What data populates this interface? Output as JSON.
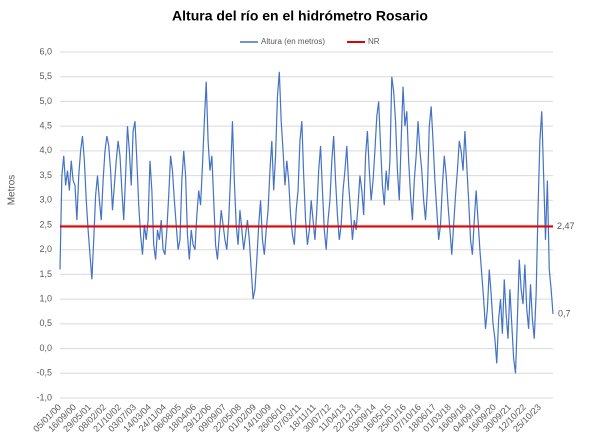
{
  "chart_data": {
    "type": "line",
    "title": "Altura del río en el hidrómetro Rosario",
    "y_label": "Metros",
    "ylim": [
      -1,
      6
    ],
    "yticks": [
      {
        "value": -1,
        "label": "-1,0"
      },
      {
        "value": -0.5,
        "label": "-0,5"
      },
      {
        "value": 0,
        "label": "0,0"
      },
      {
        "value": 0.5,
        "label": "0,5"
      },
      {
        "value": 1,
        "label": "1,0"
      },
      {
        "value": 1.5,
        "label": "1,5"
      },
      {
        "value": 2,
        "label": "2,0"
      },
      {
        "value": 2.5,
        "label": "2,5"
      },
      {
        "value": 3,
        "label": "3,0"
      },
      {
        "value": 3.5,
        "label": "3,5"
      },
      {
        "value": 4,
        "label": "4,0"
      },
      {
        "value": 4.5,
        "label": "4,5"
      },
      {
        "value": 5,
        "label": "5,0"
      },
      {
        "value": 5.5,
        "label": "5,5"
      },
      {
        "value": 6,
        "label": "6,0"
      }
    ],
    "grid": true,
    "categories": [
      "05/01/00",
      null,
      null,
      null,
      null,
      null,
      null,
      null,
      "16/09/00",
      null,
      null,
      null,
      null,
      null,
      null,
      null,
      "29/05/01",
      null,
      null,
      null,
      null,
      null,
      null,
      null,
      "08/02/02",
      null,
      null,
      null,
      null,
      null,
      null,
      null,
      "21/10/02",
      null,
      null,
      null,
      null,
      null,
      null,
      null,
      "03/07/03",
      null,
      null,
      null,
      null,
      null,
      null,
      null,
      "14/03/04",
      null,
      null,
      null,
      null,
      null,
      null,
      null,
      "24/11/04",
      null,
      null,
      null,
      null,
      null,
      null,
      null,
      "06/08/05",
      null,
      null,
      null,
      null,
      null,
      null,
      null,
      "18/04/06",
      null,
      null,
      null,
      null,
      null,
      null,
      null,
      "29/12/06",
      null,
      null,
      null,
      null,
      null,
      null,
      null,
      "09/09/07",
      null,
      null,
      null,
      null,
      null,
      null,
      null,
      "22/05/08",
      null,
      null,
      null,
      null,
      null,
      null,
      null,
      "01/02/09",
      null,
      null,
      null,
      null,
      null,
      null,
      null,
      "14/10/09",
      null,
      null,
      null,
      null,
      null,
      null,
      null,
      "26/06/10",
      null,
      null,
      null,
      null,
      null,
      null,
      null,
      "07/03/11",
      null,
      null,
      null,
      null,
      null,
      null,
      null,
      "18/11/11",
      null,
      null,
      null,
      null,
      null,
      null,
      null,
      "30/07/12",
      null,
      null,
      null,
      null,
      null,
      null,
      null,
      "11/04/13",
      null,
      null,
      null,
      null,
      null,
      null,
      null,
      "22/12/13",
      null,
      null,
      null,
      null,
      null,
      null,
      null,
      "03/09/14",
      null,
      null,
      null,
      null,
      null,
      null,
      null,
      "16/05/15",
      null,
      null,
      null,
      null,
      null,
      null,
      null,
      "25/01/16",
      null,
      null,
      null,
      null,
      null,
      null,
      null,
      "07/10/16",
      null,
      null,
      null,
      null,
      null,
      null,
      null,
      "18/06/17",
      null,
      null,
      null,
      null,
      null,
      null,
      null,
      "01/03/18",
      null,
      null,
      null,
      null,
      null,
      null,
      null,
      "16/09/18",
      null,
      null,
      null,
      null,
      null,
      null,
      null,
      "04/09/19",
      null,
      null,
      null,
      null,
      null,
      null,
      null,
      "16/09/20",
      null,
      null,
      null,
      null,
      null,
      null,
      null,
      "30/09/21",
      null,
      null,
      null,
      null,
      null,
      null,
      null,
      "12/10/22",
      null,
      null,
      null,
      null,
      null,
      null,
      null,
      "25/10/23",
      null,
      null,
      null,
      null,
      null,
      null,
      null
    ],
    "series": [
      {
        "name": "Altura (en metros)",
        "color": "#4472c4",
        "end_label": "0,7",
        "values": [
          1.6,
          3.5,
          3.9,
          3.3,
          3.6,
          3.2,
          3.8,
          3.4,
          3.3,
          2.6,
          3.5,
          4.0,
          4.3,
          3.8,
          3.0,
          2.4,
          1.9,
          1.4,
          2.2,
          3.1,
          3.5,
          3.0,
          2.6,
          3.4,
          4.0,
          4.3,
          4.1,
          3.6,
          2.8,
          3.3,
          3.8,
          4.2,
          3.9,
          3.2,
          2.6,
          3.5,
          4.5,
          4.0,
          3.3,
          4.4,
          4.6,
          3.8,
          2.9,
          2.3,
          1.9,
          2.5,
          2.2,
          2.6,
          3.8,
          3.2,
          2.1,
          1.8,
          2.4,
          2.2,
          2.6,
          2.0,
          1.9,
          2.4,
          3.1,
          3.9,
          3.6,
          3.0,
          2.5,
          2.0,
          2.2,
          3.4,
          4.0,
          3.5,
          2.3,
          1.8,
          2.4,
          2.1,
          2.0,
          2.7,
          3.2,
          2.9,
          3.7,
          4.6,
          5.4,
          4.2,
          3.6,
          3.9,
          3.0,
          2.1,
          1.8,
          2.3,
          2.8,
          2.5,
          2.2,
          2.0,
          2.6,
          3.5,
          4.6,
          3.4,
          2.5,
          2.1,
          2.8,
          2.4,
          2.0,
          2.3,
          2.6,
          2.2,
          1.6,
          1.0,
          1.2,
          1.8,
          2.5,
          3.0,
          2.2,
          1.9,
          2.4,
          2.8,
          3.6,
          4.2,
          3.2,
          3.9,
          5.1,
          5.6,
          4.6,
          4.0,
          3.3,
          3.8,
          3.4,
          2.7,
          2.3,
          2.1,
          2.8,
          3.2,
          4.2,
          4.6,
          3.5,
          2.6,
          2.1,
          2.4,
          3.0,
          2.6,
          2.2,
          2.8,
          3.6,
          4.1,
          3.2,
          2.4,
          2.0,
          2.6,
          3.0,
          3.8,
          4.3,
          3.4,
          2.7,
          2.2,
          2.5,
          3.2,
          3.6,
          4.1,
          3.3,
          2.8,
          2.2,
          2.6,
          2.4,
          2.9,
          3.5,
          3.2,
          2.7,
          3.9,
          4.4,
          3.6,
          3.0,
          3.4,
          4.0,
          4.7,
          5.0,
          4.1,
          3.3,
          2.9,
          3.6,
          3.2,
          3.8,
          5.5,
          5.2,
          4.6,
          3.6,
          3.0,
          4.2,
          5.3,
          4.5,
          4.8,
          3.8,
          3.1,
          2.6,
          3.4,
          3.9,
          4.6,
          4.0,
          3.6,
          3.0,
          2.6,
          3.2,
          4.5,
          4.9,
          4.2,
          3.4,
          2.8,
          2.2,
          2.5,
          3.3,
          3.9,
          3.5,
          2.9,
          2.4,
          1.9,
          2.5,
          3.1,
          3.6,
          4.2,
          4.0,
          3.6,
          4.4,
          3.7,
          3.0,
          2.2,
          1.9,
          2.6,
          3.2,
          2.6,
          2.0,
          1.5,
          1.0,
          0.4,
          0.8,
          1.6,
          1.1,
          0.5,
          0.2,
          -0.3,
          0.6,
          1.0,
          0.3,
          1.4,
          0.7,
          0.2,
          1.2,
          0.5,
          -0.2,
          -0.5,
          0.6,
          1.8,
          1.2,
          0.9,
          1.7,
          0.8,
          0.4,
          1.3,
          0.6,
          0.2,
          1.1,
          2.8,
          4.2,
          4.8,
          3.5,
          2.2,
          3.4,
          1.6,
          1.2,
          0.7
        ]
      },
      {
        "name": "NR",
        "color": "#e00000",
        "value": 2.47,
        "value_label": "2,47"
      }
    ]
  }
}
